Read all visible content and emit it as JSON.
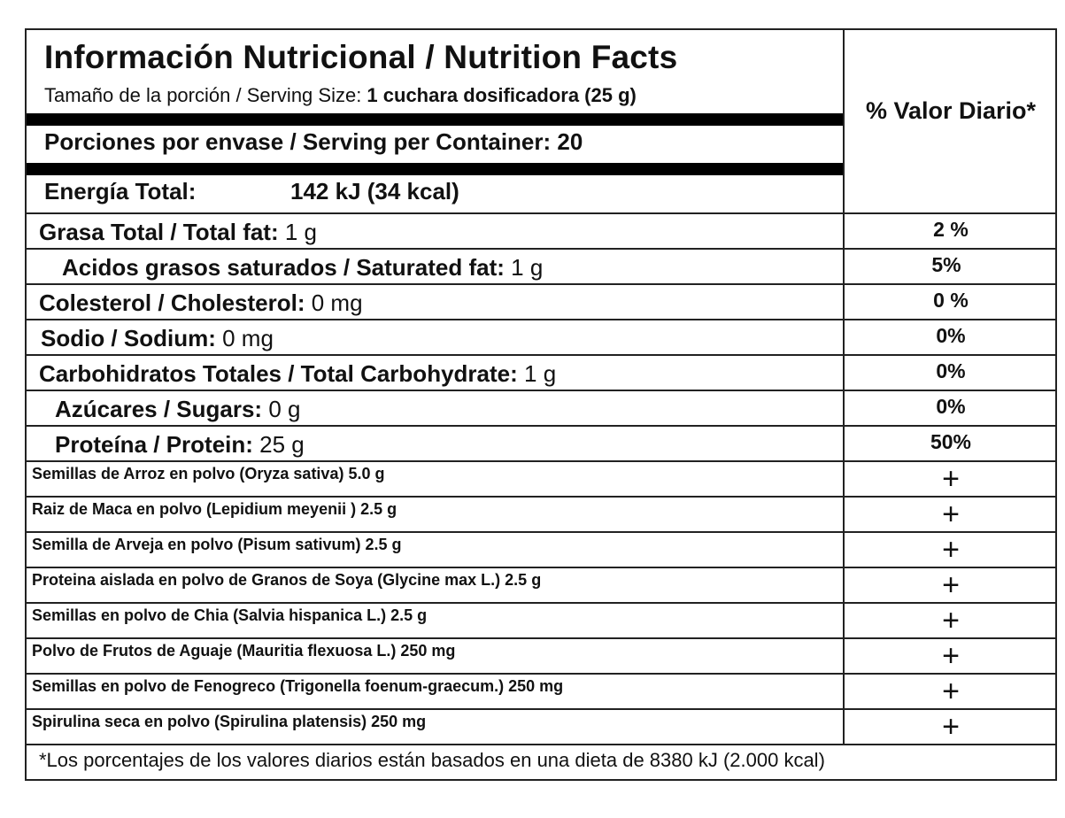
{
  "title": "Información Nutricional / Nutrition Facts",
  "serving_size": {
    "label": "Tamaño de la porción / Serving Size: ",
    "value": "1 cuchara dosificadora (25 g)"
  },
  "servings_per_container": "Porciones por envase / Serving per Container:  20",
  "energy": {
    "label": "Energía Total:",
    "value": "142 kJ  (34 kcal)"
  },
  "daily_value_header": "% Valor Diario*",
  "nutrients": [
    {
      "label": "Grasa Total / Total fat:",
      "amount": " 1 g",
      "dv": "2 %"
    },
    {
      "label": "Acidos grasos saturados / Saturated fat:",
      "amount": " 1 g",
      "dv": "5%"
    },
    {
      "label": "Colesterol / Cholesterol:",
      "amount": " 0 mg",
      "dv": "0 %"
    },
    {
      "label": "Sodio / Sodium:",
      "amount": " 0 mg",
      "dv": "0%"
    },
    {
      "label": "Carbohidratos Totales / Total Carbohydrate:",
      "amount": " 1 g",
      "dv": "0%"
    },
    {
      "label": "Azúcares / Sugars:",
      "amount": " 0 g",
      "dv": "0%"
    },
    {
      "label": "Proteína / Protein:",
      "amount": " 25 g",
      "dv": "50%"
    }
  ],
  "ingredients": [
    {
      "text": "Semillas de Arroz en polvo (Oryza sativa) 5.0 g",
      "dv": "+"
    },
    {
      "text": "Raiz de Maca en polvo (Lepidium meyenii ) 2.5 g",
      "dv": "+"
    },
    {
      "text": "Semilla de Arveja en polvo (Pisum sativum) 2.5 g",
      "dv": "+"
    },
    {
      "text": "Proteina aislada en polvo de Granos de Soya (Glycine max L.) 2.5 g",
      "dv": "+"
    },
    {
      "text": "Semillas en polvo de Chia (Salvia hispanica L.)  2.5 g",
      "dv": "+"
    },
    {
      "text": "Polvo de Frutos de Aguaje (Mauritia flexuosa L.) 250 mg",
      "dv": "+"
    },
    {
      "text": "Semillas en polvo de Fenogreco (Trigonella foenum-graecum.) 250 mg",
      "dv": "+"
    },
    {
      "text": "Spirulina seca en polvo (Spirulina platensis) 250 mg",
      "dv": "+"
    }
  ],
  "footnote": "*Los porcentajes de los valores diarios están basados en una dieta de 8380 kJ (2.000 kcal)"
}
